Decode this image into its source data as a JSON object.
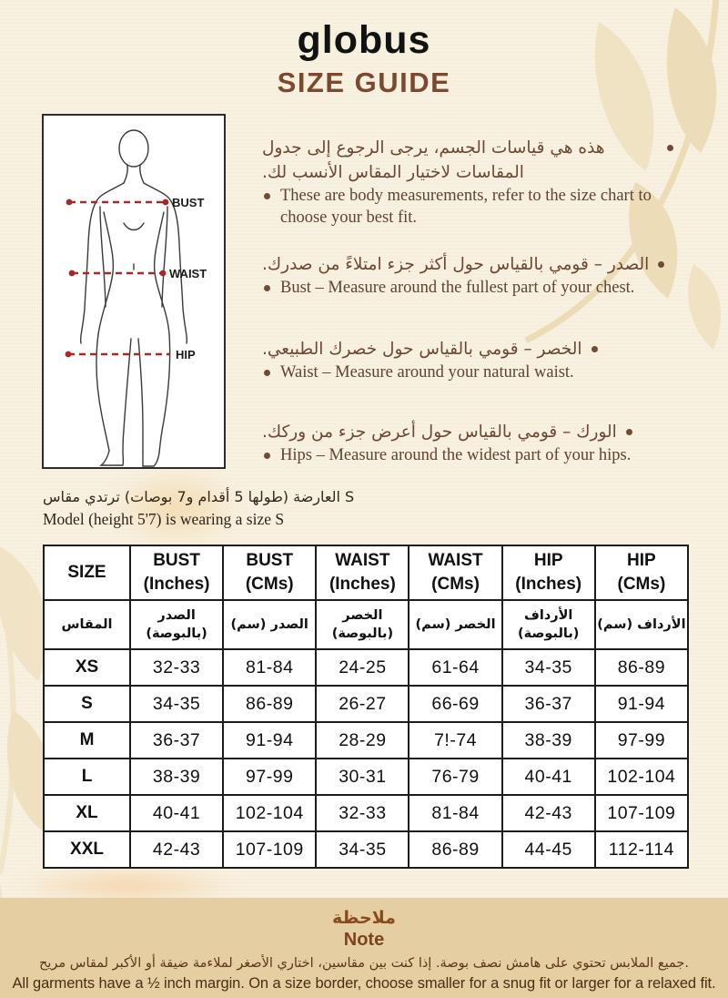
{
  "brand": {
    "logo": "globus",
    "title": "SIZE GUIDE"
  },
  "figure": {
    "bust_label": "BUST",
    "waist_label": "WAIST",
    "hip_label": "HIP",
    "line_color": "#a82828"
  },
  "bullets": [
    {
      "ar": "هذه هي قياسات الجسم، يرجى الرجوع إلى جدول المقاسات لاختيار المقاس الأنسب لك.",
      "en": "These are body measurements, refer to the size chart to choose your best fit."
    },
    {
      "ar": "الصدر – قومي بالقياس حول أكثر جزء امتلاءً من صدرك.",
      "en": "Bust – Measure around the fullest part of your chest."
    },
    {
      "ar": "الخصر – قومي بالقياس حول خصرك الطبيعي.",
      "en": "Waist – Measure around your natural waist."
    },
    {
      "ar": "الورك – قومي بالقياس حول أعرض جزء من وركك.",
      "en": "Hips – Measure around the widest part of your hips."
    }
  ],
  "model_note": {
    "ar": "العارضة (طولها 5 أقدام و7 بوصات) ترتدي مقاس S",
    "en": "Model (height 5'7) is wearing a size S"
  },
  "table": {
    "headers_en": [
      "SIZE",
      "BUST\n(Inches)",
      "BUST\n(CMs)",
      "WAIST\n(Inches)",
      "WAIST\n(CMs)",
      "HIP\n(Inches)",
      "HIP\n(CMs)"
    ],
    "headers_ar": [
      "المقاس",
      "الصدر\n(بالبوصة)",
      "الصدر (سم)",
      "الخصر\n(بالبوصة)",
      "الخصر (سم)",
      "الأرداف\n(بالبوصة)",
      "الأرداف (سم)"
    ],
    "rows": [
      {
        "size": "XS",
        "cells": [
          "32-33",
          "81-84",
          "24-25",
          "61-64",
          "34-35",
          "86-89"
        ]
      },
      {
        "size": "S",
        "cells": [
          "34-35",
          "86-89",
          "26-27",
          "66-69",
          "36-37",
          "91-94"
        ]
      },
      {
        "size": "M",
        "cells": [
          "36-37",
          "91-94",
          "28-29",
          "7!-74",
          "38-39",
          "97-99"
        ]
      },
      {
        "size": "L",
        "cells": [
          "38-39",
          "97-99",
          "30-31",
          "76-79",
          "40-41",
          "102-104"
        ]
      },
      {
        "size": "XL",
        "cells": [
          "40-41",
          "102-104",
          "32-33",
          "81-84",
          "42-43",
          "107-109"
        ]
      },
      {
        "size": "XXL",
        "cells": [
          "42-43",
          "107-109",
          "34-35",
          "86-89",
          "44-45",
          "112-114"
        ]
      }
    ]
  },
  "note": {
    "title_ar": "ملاحظة",
    "title_en": "Note",
    "body_ar": "جميع الملابس تحتوي على هامش نصف بوصة. إذا كنت بين مقاسين، اختاري الأصغر لملاءمة ضيقة أو الأكبر لمقاس مريح.",
    "body_en": "All garments have a ½ inch margin. On a size border, choose smaller for a snug fit or larger for a relaxed fit."
  },
  "colors": {
    "background": "#f7efdd",
    "leaf_decoration": "#ecdcb8",
    "note_band": "#e5cfa2",
    "accent_brown": "#7b4830",
    "measure_red": "#a82828"
  }
}
